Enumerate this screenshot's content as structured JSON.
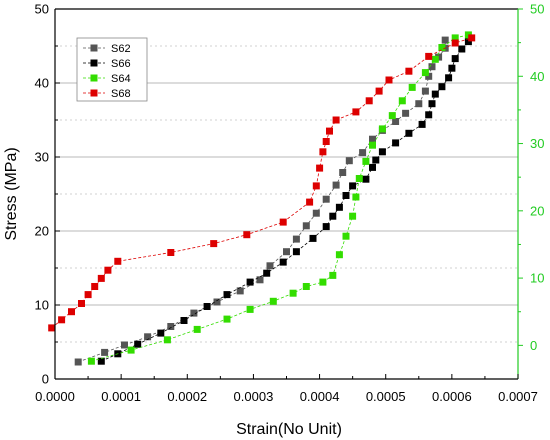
{
  "chart_data": {
    "type": "scatter",
    "xlabel": "Strain(No Unit)",
    "ylabel": "Stress (MPa)",
    "xlim": [
      0,
      0.0007
    ],
    "ylim": [
      0,
      50
    ],
    "x_ticks": [
      "0.0000",
      "0.0001",
      "0.0002",
      "0.0003",
      "0.0004",
      "0.0005",
      "0.0006",
      "0.0007"
    ],
    "y_ticks": [
      "0",
      "10",
      "20",
      "30",
      "40",
      "50"
    ],
    "right_axis": {
      "ylim": [
        -5,
        50
      ],
      "ticks": [
        "0",
        "10",
        "20",
        "30",
        "40",
        "50"
      ],
      "color": "#22cc22"
    },
    "grid": true,
    "legend_position": "top-left",
    "series": [
      {
        "name": "S62",
        "color": "#555555",
        "points": [
          [
            3.5e-05,
            2.3
          ],
          [
            7.5e-05,
            3.6
          ],
          [
            0.000105,
            4.6
          ],
          [
            0.00014,
            5.7
          ],
          [
            0.000175,
            7.1
          ],
          [
            0.00021,
            8.9
          ],
          [
            0.000245,
            10.4
          ],
          [
            0.00028,
            11.9
          ],
          [
            0.00031,
            13.4
          ],
          [
            0.000325,
            15.3
          ],
          [
            0.00035,
            17.2
          ],
          [
            0.000365,
            18.9
          ],
          [
            0.00038,
            20.7
          ],
          [
            0.000395,
            22.4
          ],
          [
            0.00041,
            24.3
          ],
          [
            0.000425,
            26.2
          ],
          [
            0.000435,
            27.9
          ],
          [
            0.000445,
            29.5
          ],
          [
            0.000465,
            30.6
          ],
          [
            0.00048,
            32.4
          ],
          [
            0.000495,
            33.6
          ],
          [
            0.000515,
            34.8
          ],
          [
            0.00053,
            35.9
          ],
          [
            0.00055,
            37.2
          ],
          [
            0.00056,
            38.9
          ],
          [
            0.000565,
            40.9
          ],
          [
            0.00057,
            42.2
          ],
          [
            0.00058,
            43.5
          ],
          [
            0.00059,
            44.7
          ],
          [
            0.00059,
            45.8
          ]
        ]
      },
      {
        "name": "S66",
        "color": "#000000",
        "points": [
          [
            7e-05,
            2.4
          ],
          [
            9.5e-05,
            3.4
          ],
          [
            0.000125,
            4.7
          ],
          [
            0.00016,
            6.2
          ],
          [
            0.000195,
            7.9
          ],
          [
            0.00023,
            9.8
          ],
          [
            0.00026,
            11.4
          ],
          [
            0.000295,
            13.1
          ],
          [
            0.00032,
            14.3
          ],
          [
            0.000345,
            15.8
          ],
          [
            0.000365,
            17.2
          ],
          [
            0.00039,
            19.0
          ],
          [
            0.00041,
            20.6
          ],
          [
            0.00042,
            22.0
          ],
          [
            0.00043,
            23.2
          ],
          [
            0.00044,
            24.8
          ],
          [
            0.00045,
            26.1
          ],
          [
            0.00047,
            27.0
          ],
          [
            0.00048,
            28.6
          ],
          [
            0.000485,
            29.6
          ],
          [
            0.000495,
            30.7
          ],
          [
            0.000515,
            31.9
          ],
          [
            0.000535,
            33.2
          ],
          [
            0.000555,
            34.4
          ],
          [
            0.000565,
            35.7
          ],
          [
            0.00057,
            37.2
          ],
          [
            0.000575,
            38.5
          ],
          [
            0.000585,
            39.5
          ],
          [
            0.000595,
            40.7
          ],
          [
            0.0006,
            42.0
          ],
          [
            0.000605,
            43.3
          ],
          [
            0.000615,
            44.6
          ],
          [
            0.000625,
            45.6
          ]
        ]
      },
      {
        "name": "S64",
        "color": "#33dd00",
        "points": [
          [
            5.5e-05,
            2.4
          ],
          [
            0.000115,
            3.9
          ],
          [
            0.00017,
            5.3
          ],
          [
            0.000215,
            6.7
          ],
          [
            0.00026,
            8.1
          ],
          [
            0.000295,
            9.4
          ],
          [
            0.00033,
            10.5
          ],
          [
            0.00036,
            11.6
          ],
          [
            0.00038,
            12.5
          ],
          [
            0.000405,
            13.1
          ],
          [
            0.00042,
            14.0
          ],
          [
            0.00043,
            16.8
          ],
          [
            0.00044,
            19.3
          ],
          [
            0.00045,
            22.0
          ],
          [
            0.000455,
            24.6
          ],
          [
            0.00046,
            27.1
          ],
          [
            0.00047,
            29.4
          ],
          [
            0.00048,
            31.6
          ],
          [
            0.000495,
            33.8
          ],
          [
            0.00051,
            35.6
          ],
          [
            0.000525,
            37.6
          ],
          [
            0.00054,
            39.4
          ],
          [
            0.00056,
            41.4
          ],
          [
            0.000575,
            43.2
          ],
          [
            0.000585,
            44.8
          ],
          [
            0.000605,
            46.1
          ],
          [
            0.000625,
            46.5
          ]
        ]
      },
      {
        "name": "S68",
        "color": "#dd0000",
        "points": [
          [
            -5e-06,
            6.9
          ],
          [
            1e-05,
            8.0
          ],
          [
            2.5e-05,
            9.1
          ],
          [
            4e-05,
            10.2
          ],
          [
            5e-05,
            11.4
          ],
          [
            6e-05,
            12.5
          ],
          [
            7e-05,
            13.6
          ],
          [
            8e-05,
            14.7
          ],
          [
            9.5e-05,
            15.9
          ],
          [
            0.000175,
            17.1
          ],
          [
            0.00024,
            18.3
          ],
          [
            0.00029,
            19.5
          ],
          [
            0.000345,
            21.2
          ],
          [
            0.000385,
            23.9
          ],
          [
            0.000395,
            26.1
          ],
          [
            0.0004,
            28.5
          ],
          [
            0.000405,
            30.7
          ],
          [
            0.00041,
            32.1
          ],
          [
            0.000415,
            33.5
          ],
          [
            0.000425,
            35.0
          ],
          [
            0.000455,
            36.1
          ],
          [
            0.000475,
            37.6
          ],
          [
            0.00049,
            38.9
          ],
          [
            0.000505,
            40.4
          ],
          [
            0.000535,
            41.6
          ],
          [
            0.000565,
            43.6
          ],
          [
            0.000605,
            45.4
          ],
          [
            0.00063,
            46.1
          ]
        ]
      }
    ]
  }
}
